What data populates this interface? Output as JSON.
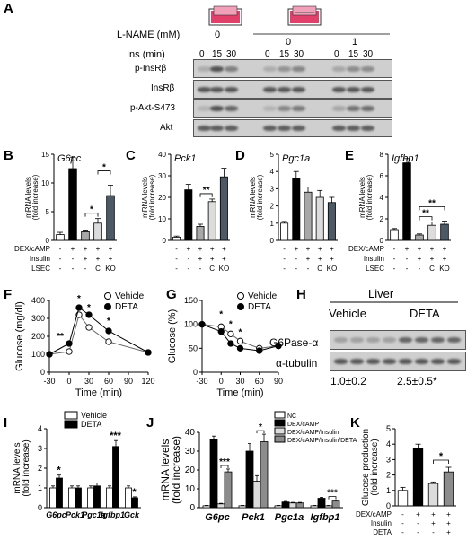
{
  "panels": [
    "A",
    "B",
    "C",
    "D",
    "E",
    "F",
    "G",
    "H",
    "I",
    "J",
    "K"
  ],
  "panelA": {
    "lname_label": "L-NAME (mM)",
    "ins_label": "Ins (min)",
    "lname_values": [
      "0",
      "0",
      "1"
    ],
    "ins_times": [
      "0",
      "15",
      "30",
      "0",
      "15",
      "30",
      "0",
      "15",
      "30"
    ],
    "blot_labels": [
      "p-InsRβ",
      "InsRβ",
      "p-Akt-S473",
      "Akt"
    ]
  },
  "bar_row": {
    "ylabel": "mRNA levels (fold increase)",
    "condition_labels": [
      "DEX/cAMP",
      "Insulin",
      "LSEC"
    ],
    "signs": {
      "DEX/cAMP": [
        "-",
        "+",
        "+",
        "+",
        "+"
      ],
      "Insulin": [
        "-",
        "-",
        "+",
        "+",
        "+"
      ],
      "LSEC": [
        "-",
        "-",
        "-",
        "C",
        "KO"
      ]
    },
    "colors": [
      "#ffffff",
      "#000000",
      "#a8a8a8",
      "#dcdcdc",
      "#4d5a66"
    ]
  },
  "chart_data": [
    {
      "panel": "B",
      "type": "bar",
      "title": "G6pc",
      "values": [
        1.0,
        12.5,
        1.5,
        3.0,
        7.8
      ],
      "errors": [
        0.4,
        2.0,
        0.3,
        0.8,
        1.8
      ],
      "ylim": [
        0,
        15
      ],
      "yticks": [
        "0",
        "5",
        "10",
        "15"
      ],
      "significance": [
        {
          "pair": [
            2,
            3
          ],
          "label": "*"
        },
        {
          "pair": [
            3,
            4
          ],
          "label": "*"
        }
      ]
    },
    {
      "panel": "C",
      "type": "bar",
      "title": "Pck1",
      "values": [
        1.5,
        23.5,
        6.5,
        18.0,
        29.5
      ],
      "errors": [
        0.5,
        2.5,
        1.0,
        1.2,
        4.0
      ],
      "ylim": [
        0,
        40
      ],
      "yticks": [
        "0",
        "10",
        "20",
        "30",
        "40"
      ],
      "significance": [
        {
          "pair": [
            2,
            3
          ],
          "label": "**"
        }
      ]
    },
    {
      "panel": "D",
      "type": "bar",
      "title": "Pgc1a",
      "values": [
        1.0,
        3.6,
        2.8,
        2.5,
        2.2
      ],
      "errors": [
        0.1,
        0.4,
        0.3,
        0.4,
        0.3
      ],
      "ylim": [
        0,
        5
      ],
      "yticks": [
        "0",
        "1",
        "2",
        "3",
        "4",
        "5"
      ],
      "significance": []
    },
    {
      "panel": "E",
      "type": "bar",
      "title": "Igfbp1",
      "values": [
        1.0,
        7.2,
        0.5,
        1.4,
        1.5
      ],
      "errors": [
        0.1,
        0.4,
        0.1,
        0.3,
        0.3
      ],
      "ylim": [
        0,
        8
      ],
      "yticks": [
        "0",
        "2",
        "4",
        "6",
        "8"
      ],
      "significance": [
        {
          "pair": [
            2,
            3
          ],
          "label": "**"
        },
        {
          "pair": [
            2,
            4
          ],
          "label": "**"
        }
      ]
    },
    {
      "panel": "F",
      "type": "line",
      "xlabel": "Time (min)",
      "ylabel": "Glucose (mg/dl)",
      "xlim": [
        -30,
        120
      ],
      "ylim": [
        0,
        400
      ],
      "xticks": [
        "-30",
        "0",
        "30",
        "60",
        "90",
        "120"
      ],
      "yticks": [
        "0",
        "100",
        "200",
        "300",
        "400"
      ],
      "series": [
        {
          "name": "Vehicle",
          "x": [
            -30,
            0,
            15,
            30,
            60,
            120
          ],
          "y": [
            100,
            115,
            320,
            250,
            170,
            110
          ]
        },
        {
          "name": "DETA",
          "x": [
            -30,
            0,
            15,
            30,
            60,
            120
          ],
          "y": [
            100,
            160,
            360,
            320,
            230,
            110
          ]
        }
      ],
      "annotations": [
        "**",
        "*",
        "*",
        "*"
      ]
    },
    {
      "panel": "G",
      "type": "line",
      "xlabel": "Time (min)",
      "ylabel": "Glucose (%)",
      "xlim": [
        -30,
        90
      ],
      "ylim": [
        0,
        150
      ],
      "xticks": [
        "-30",
        "0",
        "30",
        "60",
        "90"
      ],
      "yticks": [
        "0",
        "50",
        "100",
        "150"
      ],
      "series": [
        {
          "name": "Vehicle",
          "x": [
            -30,
            0,
            15,
            30,
            60,
            90
          ],
          "y": [
            100,
            95,
            80,
            65,
            50,
            55
          ]
        },
        {
          "name": "DETA",
          "x": [
            -30,
            0,
            15,
            30,
            60,
            90
          ],
          "y": [
            100,
            85,
            60,
            50,
            45,
            55
          ]
        }
      ],
      "annotations": [
        "*",
        "*",
        "*"
      ]
    },
    {
      "panel": "I",
      "type": "bar",
      "ylabel": "mRNA levels (fold increase)",
      "categories": [
        "G6pc",
        "Pck1",
        "Pgc1a",
        "Igfbp1",
        "Gck"
      ],
      "ylim": [
        0,
        4
      ],
      "yticks": [
        "0",
        "1",
        "2",
        "3",
        "4"
      ],
      "series": [
        {
          "name": "Vehicle",
          "values": [
            1.0,
            1.0,
            1.0,
            1.0,
            1.0
          ],
          "errors": [
            0.1,
            0.1,
            0.1,
            0.1,
            0.1
          ]
        },
        {
          "name": "DETA",
          "values": [
            1.5,
            1.0,
            1.1,
            3.1,
            0.5
          ],
          "errors": [
            0.15,
            0.1,
            0.15,
            0.3,
            0.05
          ]
        }
      ],
      "annotations": [
        "*",
        "***",
        "*"
      ]
    },
    {
      "panel": "J",
      "type": "bar",
      "ylabel": "mRNA levels (fold increase)",
      "categories": [
        "G6pc",
        "Pck1",
        "Pgc1a",
        "Igfbp1"
      ],
      "ylim": [
        0,
        40
      ],
      "yticks": [
        "0",
        "10",
        "20",
        "30",
        "40"
      ],
      "series": [
        {
          "name": "NC",
          "values": [
            1,
            1,
            1,
            1
          ],
          "errors": [
            0.2,
            0.2,
            0.2,
            0.2
          ]
        },
        {
          "name": "DEX/cAMP",
          "values": [
            36,
            30,
            3,
            5
          ],
          "errors": [
            2.0,
            4.0,
            0.3,
            0.5
          ]
        },
        {
          "name": "DEX/cAMP/Insulin",
          "values": [
            2,
            14,
            2.5,
            1
          ],
          "errors": [
            0.3,
            3.0,
            0.3,
            0.2
          ]
        },
        {
          "name": "DEX/cAMP/Insulin/DETA",
          "values": [
            19,
            35,
            2.5,
            3.5
          ],
          "errors": [
            1.5,
            4.0,
            0.3,
            0.5
          ]
        }
      ],
      "annotations": [
        "***",
        "*",
        "***"
      ]
    },
    {
      "panel": "K",
      "type": "bar",
      "ylabel": "Glucose production (fold increase)",
      "values": [
        1.0,
        3.7,
        1.45,
        2.2
      ],
      "errors": [
        0.2,
        0.3,
        0.1,
        0.3
      ],
      "ylim": [
        0,
        5
      ],
      "yticks": [
        "0",
        "1",
        "2",
        "3",
        "4",
        "5"
      ],
      "condition_labels": [
        "DEX/cAMP",
        "Insulin",
        "DETA"
      ],
      "signs": {
        "DEX/cAMP": [
          "-",
          "+",
          "+",
          "+"
        ],
        "Insulin": [
          "-",
          "-",
          "+",
          "+"
        ],
        "DETA": [
          "-",
          "-",
          "-",
          "+"
        ]
      },
      "annotations": [
        "*"
      ]
    }
  ],
  "panelH": {
    "header": "Liver",
    "groups": [
      "Vehicle",
      "DETA"
    ],
    "rows": [
      "G6Pase-α",
      "α-tubulin"
    ],
    "quant": [
      "1.0±0.2",
      "2.5±0.5*"
    ]
  }
}
